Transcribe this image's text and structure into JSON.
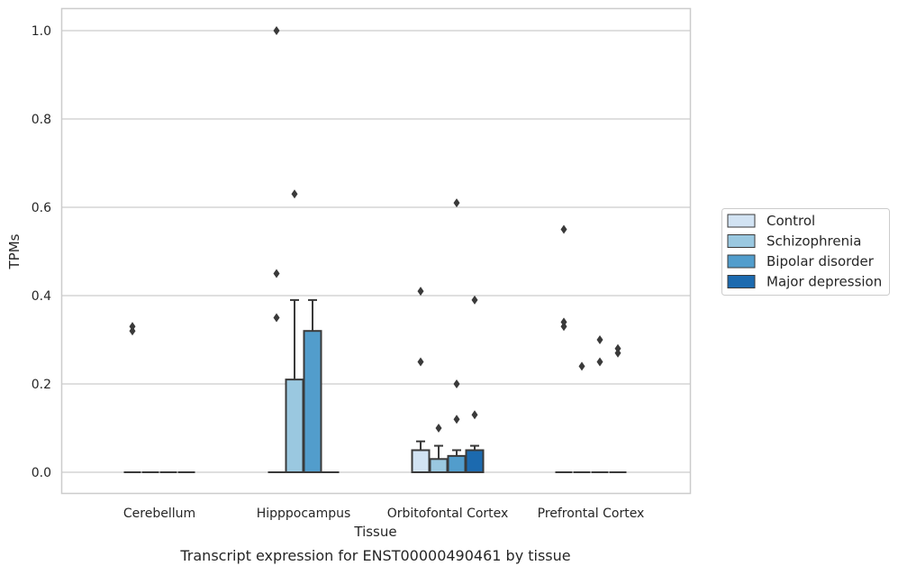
{
  "chart_data": {
    "type": "box",
    "xlabel": "Tissue",
    "ylabel": "TPMs",
    "caption": "Transcript expression for ENST00000490461 by tissue",
    "categories": [
      "Cerebellum",
      "Hipppocampus",
      "Orbitofontal Cortex",
      "Prefrontal Cortex"
    ],
    "ylim": [
      -0.05,
      1.05
    ],
    "yticks": [
      0.0,
      0.2,
      0.4,
      0.6,
      0.8,
      1.0
    ],
    "ytick_labels": [
      "0.0",
      "0.2",
      "0.4",
      "0.6",
      "0.8",
      "1.0"
    ],
    "grid": "horizontal",
    "legend_placement": "right",
    "series": [
      {
        "name": "Control",
        "color": "#d2e3f3",
        "boxes": [
          {
            "q1": 0,
            "median": 0,
            "q3": 0,
            "whisker_low": 0,
            "whisker_high": 0,
            "outliers": [
              0.32,
              0.33
            ]
          },
          {
            "q1": 0,
            "median": 0,
            "q3": 0,
            "whisker_low": 0,
            "whisker_high": 0,
            "outliers": [
              0.35,
              0.45,
              1.0
            ]
          },
          {
            "q1": 0,
            "median": 0,
            "q3": 0.05,
            "whisker_low": 0,
            "whisker_high": 0.07,
            "outliers": [
              0.25,
              0.41
            ]
          },
          {
            "q1": 0,
            "median": 0,
            "q3": 0,
            "whisker_low": 0,
            "whisker_high": 0,
            "outliers": [
              0.33,
              0.34,
              0.55
            ]
          }
        ]
      },
      {
        "name": "Schizophrenia",
        "color": "#9ac8e0",
        "boxes": [
          {
            "q1": 0,
            "median": 0,
            "q3": 0,
            "whisker_low": 0,
            "whisker_high": 0,
            "outliers": []
          },
          {
            "q1": 0,
            "median": 0,
            "q3": 0.21,
            "whisker_low": 0,
            "whisker_high": 0.39,
            "outliers": [
              0.63
            ]
          },
          {
            "q1": 0,
            "median": 0,
            "q3": 0.03,
            "whisker_low": 0,
            "whisker_high": 0.06,
            "outliers": [
              0.1
            ]
          },
          {
            "q1": 0,
            "median": 0,
            "q3": 0,
            "whisker_low": 0,
            "whisker_high": 0,
            "outliers": [
              0.24
            ]
          }
        ]
      },
      {
        "name": "Bipolar disorder",
        "color": "#529dcc",
        "boxes": [
          {
            "q1": 0,
            "median": 0,
            "q3": 0,
            "whisker_low": 0,
            "whisker_high": 0,
            "outliers": []
          },
          {
            "q1": 0,
            "median": 0,
            "q3": 0.32,
            "whisker_low": 0,
            "whisker_high": 0.39,
            "outliers": []
          },
          {
            "q1": 0,
            "median": 0,
            "q3": 0.037,
            "whisker_low": 0,
            "whisker_high": 0.05,
            "outliers": [
              0.12,
              0.2,
              0.61
            ]
          },
          {
            "q1": 0,
            "median": 0,
            "q3": 0,
            "whisker_low": 0,
            "whisker_high": 0,
            "outliers": [
              0.25,
              0.3
            ]
          }
        ]
      },
      {
        "name": "Major depression",
        "color": "#1c6aaf",
        "boxes": [
          {
            "q1": 0,
            "median": 0,
            "q3": 0,
            "whisker_low": 0,
            "whisker_high": 0,
            "outliers": []
          },
          {
            "q1": 0,
            "median": 0,
            "q3": 0,
            "whisker_low": 0,
            "whisker_high": 0,
            "outliers": []
          },
          {
            "q1": 0,
            "median": 0,
            "q3": 0.05,
            "whisker_low": 0,
            "whisker_high": 0.06,
            "outliers": [
              0.13,
              0.39
            ]
          },
          {
            "q1": 0,
            "median": 0,
            "q3": 0,
            "whisker_low": 0,
            "whisker_high": 0,
            "outliers": [
              0.27,
              0.28
            ]
          }
        ]
      }
    ]
  },
  "colors": {
    "grid": "#cccccc",
    "frame": "#cccccc",
    "edge": "#3a3a3a"
  }
}
